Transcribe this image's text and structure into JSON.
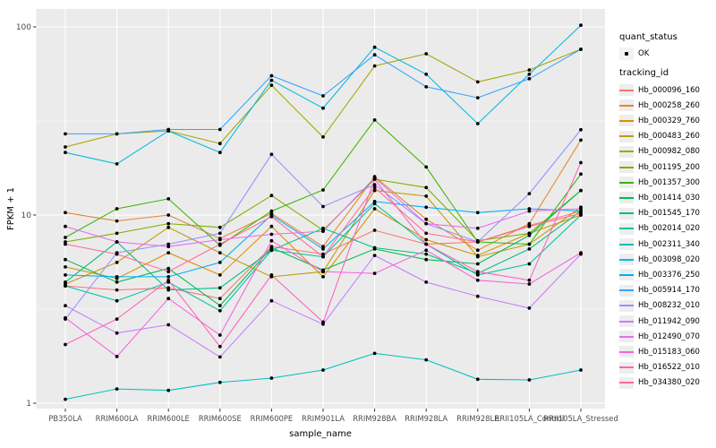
{
  "figure": {
    "background": "#FFFFFF",
    "panel_background": "#EBEBEB",
    "grid_color": "#FFFFFF",
    "tick_color": "#333333",
    "tick_label_color": "#4D4D4D",
    "axis_title_color": "#000000"
  },
  "legend": {
    "quant_status_title": "quant_status",
    "quant_status_items": [
      {
        "label": "OK",
        "marker": "black-point"
      }
    ],
    "tracking_id_title": "tracking_id",
    "key_background": "#EDEDED"
  },
  "chart_data": {
    "type": "line",
    "title": "",
    "xlabel": "sample_name",
    "ylabel": "FPKM + 1",
    "y_scale": "log10",
    "y_ticks": [
      1,
      10,
      100
    ],
    "y_minor_ticks": [
      3.162,
      31.62
    ],
    "ylim": [
      0.93,
      125
    ],
    "grid": true,
    "legend_position": "right",
    "point_marker": "black-dot",
    "categories": [
      "PB350LA",
      "RRIM600LA",
      "RRIM600LE",
      "RRIM600SE",
      "RRIM600PE",
      "RRIM901LA",
      "RRIM928BA",
      "RRIM928LA",
      "RRIM928LE",
      "RRII105LA_Control",
      "RRII105LA_Stressed"
    ],
    "series": [
      {
        "name": "Hb_000096_160",
        "color": "#F8766D",
        "values": [
          4.2,
          4.0,
          4.1,
          3.6,
          6.8,
          6.2,
          8.3,
          7.0,
          7.2,
          8.8,
          10.5
        ]
      },
      {
        "name": "Hb_000258_260",
        "color": "#E88526",
        "values": [
          10.3,
          9.3,
          10.0,
          7.5,
          10.2,
          6.8,
          16.0,
          9.5,
          6.5,
          9.0,
          25.0
        ]
      },
      {
        "name": "Hb_000329_760",
        "color": "#D89000",
        "values": [
          5.3,
          4.6,
          6.3,
          4.8,
          8.7,
          4.7,
          10.8,
          7.4,
          6.1,
          8.0,
          10.0
        ]
      },
      {
        "name": "Hb_000483_260",
        "color": "#C09B00",
        "values": [
          4.3,
          5.6,
          8.6,
          6.3,
          4.7,
          5.0,
          13.5,
          12.6,
          6.0,
          7.0,
          11.0
        ]
      },
      {
        "name": "Hb_000982_080",
        "color": "#A3A500",
        "values": [
          23,
          27,
          28,
          24,
          49,
          26,
          62,
          72,
          51,
          59,
          76
        ]
      },
      {
        "name": "Hb_001195_200",
        "color": "#7CAE00",
        "values": [
          7.2,
          8.0,
          9.0,
          8.6,
          12.7,
          8.3,
          15.5,
          14.0,
          7.3,
          8.0,
          13.5
        ]
      },
      {
        "name": "Hb_001357_300",
        "color": "#39B600",
        "values": [
          7.6,
          10.8,
          12.2,
          6.9,
          10.5,
          13.6,
          32.0,
          18.0,
          7.2,
          7.0,
          16.5
        ]
      },
      {
        "name": "Hb_001414_030",
        "color": "#00BB4E",
        "values": [
          5.8,
          4.4,
          5.2,
          3.3,
          6.7,
          5.1,
          6.6,
          5.8,
          5.5,
          7.8,
          13.5
        ]
      },
      {
        "name": "Hb_001545_170",
        "color": "#00BF7D",
        "values": [
          4.4,
          7.2,
          4.0,
          4.1,
          6.5,
          8.5,
          6.7,
          6.2,
          4.9,
          6.6,
          10.5
        ]
      },
      {
        "name": "Hb_002014_020",
        "color": "#00C1A3",
        "values": [
          4.2,
          3.5,
          4.4,
          3.1,
          6.5,
          6.0,
          11.5,
          7.0,
          4.8,
          5.5,
          10.0
        ]
      },
      {
        "name": "Hb_002311_340",
        "color": "#00BFC4",
        "values": [
          1.05,
          1.19,
          1.17,
          1.29,
          1.36,
          1.5,
          1.84,
          1.7,
          1.34,
          1.33,
          1.5
        ]
      },
      {
        "name": "Hb_003098_020",
        "color": "#00BAE0",
        "values": [
          21.5,
          18.7,
          28,
          21.5,
          52,
          37,
          78,
          56,
          30.6,
          56,
          102
        ]
      },
      {
        "name": "Hb_003376_250",
        "color": "#00B0F6",
        "values": [
          4.8,
          4.7,
          4.7,
          5.6,
          10.0,
          6.6,
          11.8,
          11.0,
          10.3,
          10.8,
          10.5
        ]
      },
      {
        "name": "Hb_005914_170",
        "color": "#35A2FF",
        "values": [
          27,
          27,
          28.5,
          28.5,
          55,
          43,
          71,
          48,
          42,
          53,
          76
        ]
      },
      {
        "name": "Hb_008232_010",
        "color": "#9590FF",
        "values": [
          2.8,
          6.3,
          7.0,
          8.0,
          21.0,
          11.1,
          14.5,
          9.0,
          7.2,
          13.0,
          28.4
        ]
      },
      {
        "name": "Hb_011942_090",
        "color": "#C77CFF",
        "values": [
          3.3,
          2.36,
          2.61,
          1.76,
          3.5,
          2.63,
          6.1,
          4.4,
          3.7,
          3.2,
          6.2
        ]
      },
      {
        "name": "Hb_012490_070",
        "color": "#E76BF3",
        "values": [
          8.7,
          7.2,
          6.8,
          7.4,
          7.9,
          8.2,
          15.8,
          9.0,
          8.5,
          10.5,
          10.8
        ]
      },
      {
        "name": "Hb_015183_060",
        "color": "#FA62DB",
        "values": [
          2.84,
          1.77,
          3.6,
          2.3,
          7.3,
          5.0,
          4.9,
          6.5,
          4.5,
          4.3,
          6.3
        ]
      },
      {
        "name": "Hb_016522_010",
        "color": "#FF62BC",
        "values": [
          2.05,
          2.8,
          4.5,
          2.0,
          4.8,
          2.7,
          15.5,
          7.0,
          5.0,
          4.5,
          19.0
        ]
      },
      {
        "name": "Hb_034380_020",
        "color": "#FF6A98",
        "values": [
          7.0,
          6.2,
          5.0,
          7.0,
          9.8,
          6.0,
          14.0,
          8.0,
          7.2,
          8.7,
          10.2
        ]
      }
    ]
  }
}
